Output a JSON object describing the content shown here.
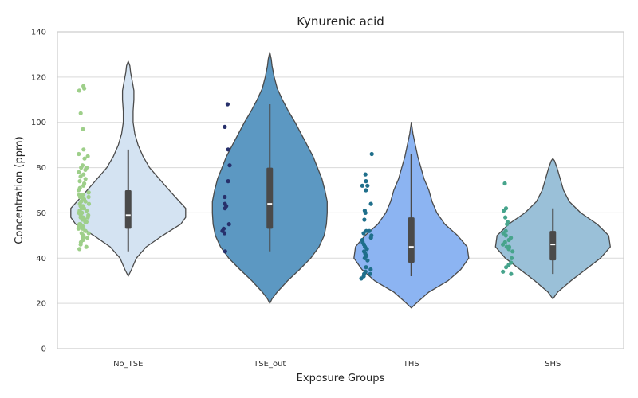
{
  "chart_data": {
    "type": "violin",
    "title": "Kynurenic acid",
    "xlabel": "Exposure Groups",
    "ylabel": "Concentration (ppm)",
    "ylim": [
      0,
      140
    ],
    "yticks": [
      0,
      20,
      40,
      60,
      80,
      100,
      120,
      140
    ],
    "grid": "horizontal",
    "categories": [
      "No_TSE",
      "TSE_out",
      "THS",
      "SHS"
    ],
    "groups": [
      {
        "name": "No_TSE",
        "violin_color": "#d4e3f2",
        "point_color": "#9ecf8a",
        "box": {
          "q1": 53,
          "median": 59,
          "q3": 70,
          "whisker_low": 43,
          "whisker_high": 88
        },
        "density": [
          [
            32,
            0
          ],
          [
            35,
            4
          ],
          [
            40,
            10
          ],
          [
            45,
            22
          ],
          [
            50,
            42
          ],
          [
            55,
            64
          ],
          [
            58,
            70
          ],
          [
            62,
            70
          ],
          [
            66,
            60
          ],
          [
            70,
            50
          ],
          [
            75,
            38
          ],
          [
            80,
            26
          ],
          [
            85,
            18
          ],
          [
            90,
            12
          ],
          [
            95,
            8
          ],
          [
            100,
            6
          ],
          [
            105,
            6
          ],
          [
            110,
            7
          ],
          [
            114,
            7
          ],
          [
            118,
            5
          ],
          [
            122,
            3
          ],
          [
            125,
            2
          ],
          [
            127,
            0
          ]
        ],
        "points": [
          116,
          115,
          114,
          104,
          97,
          88,
          86,
          85,
          84,
          81,
          80,
          80,
          79,
          78,
          77,
          76,
          75,
          74,
          73,
          72,
          71,
          70,
          69,
          69,
          68,
          68,
          67,
          67,
          66,
          66,
          65,
          65,
          64,
          64,
          63,
          63,
          62,
          62,
          61,
          61,
          60,
          60,
          60,
          59,
          59,
          58,
          58,
          58,
          57,
          57,
          56,
          56,
          55,
          55,
          54,
          54,
          53,
          53,
          52,
          52,
          51,
          51,
          50,
          50,
          49,
          49,
          48,
          48,
          47,
          46,
          45,
          44
        ]
      },
      {
        "name": "TSE_out",
        "violin_color": "#5c98c2",
        "point_color": "#27306b",
        "box": {
          "q1": 53,
          "median": 64,
          "q3": 80,
          "whisker_low": 43,
          "whisker_high": 108
        },
        "density": [
          [
            20,
            0
          ],
          [
            22,
            3
          ],
          [
            25,
            10
          ],
          [
            30,
            24
          ],
          [
            35,
            40
          ],
          [
            40,
            55
          ],
          [
            45,
            66
          ],
          [
            50,
            73
          ],
          [
            55,
            76
          ],
          [
            60,
            77
          ],
          [
            65,
            77
          ],
          [
            70,
            74
          ],
          [
            75,
            70
          ],
          [
            80,
            64
          ],
          [
            85,
            58
          ],
          [
            90,
            50
          ],
          [
            95,
            42
          ],
          [
            100,
            34
          ],
          [
            105,
            25
          ],
          [
            110,
            17
          ],
          [
            115,
            10
          ],
          [
            120,
            6
          ],
          [
            125,
            3
          ],
          [
            128,
            2
          ],
          [
            131,
            0
          ]
        ],
        "points": [
          108,
          98,
          88,
          81,
          74,
          67,
          64,
          63,
          62,
          55,
          53,
          52,
          51,
          43
        ]
      },
      {
        "name": "THS",
        "violin_color": "#8cb4f2",
        "point_color": "#1f6f8b",
        "box": {
          "q1": 38,
          "median": 45,
          "q3": 58,
          "whisker_low": 32,
          "whisker_high": 86
        },
        "density": [
          [
            18,
            0
          ],
          [
            20,
            6
          ],
          [
            25,
            22
          ],
          [
            30,
            46
          ],
          [
            35,
            62
          ],
          [
            40,
            72
          ],
          [
            45,
            70
          ],
          [
            50,
            58
          ],
          [
            55,
            42
          ],
          [
            60,
            32
          ],
          [
            65,
            26
          ],
          [
            70,
            22
          ],
          [
            75,
            16
          ],
          [
            80,
            12
          ],
          [
            85,
            8
          ],
          [
            90,
            5
          ],
          [
            95,
            2
          ],
          [
            100,
            0
          ]
        ],
        "points": [
          86,
          77,
          74,
          72,
          72,
          70,
          64,
          61,
          60,
          57,
          52,
          52,
          51,
          50,
          49,
          48,
          47,
          46,
          45,
          44,
          43,
          42,
          41,
          40,
          39,
          36,
          35,
          34,
          33,
          33,
          32,
          31
        ]
      },
      {
        "name": "SHS",
        "violin_color": "#9ac0d8",
        "point_color": "#47a48c",
        "box": {
          "q1": 39,
          "median": 46,
          "q3": 52,
          "whisker_low": 33,
          "whisker_high": 62
        },
        "density": [
          [
            22,
            0
          ],
          [
            25,
            6
          ],
          [
            30,
            22
          ],
          [
            35,
            40
          ],
          [
            40,
            58
          ],
          [
            45,
            70
          ],
          [
            50,
            68
          ],
          [
            55,
            54
          ],
          [
            60,
            34
          ],
          [
            65,
            20
          ],
          [
            70,
            13
          ],
          [
            75,
            9
          ],
          [
            80,
            5
          ],
          [
            83,
            2
          ],
          [
            84,
            0
          ]
        ],
        "points": [
          73,
          62,
          61,
          58,
          56,
          55,
          52,
          51,
          50,
          49,
          48,
          47,
          46,
          45,
          45,
          44,
          43,
          40,
          38,
          37,
          36,
          34,
          33
        ]
      }
    ]
  }
}
